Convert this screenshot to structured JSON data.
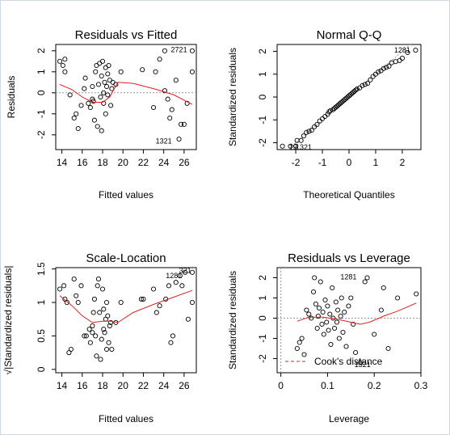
{
  "chart_data": [
    {
      "type": "scatter",
      "title": "Residuals vs Fitted",
      "xlabel": "Fitted values",
      "ylabel": "Residuals",
      "xlim": [
        13.4,
        27.2
      ],
      "ylim": [
        -2.7,
        2.3
      ],
      "xticks": [
        14,
        16,
        18,
        20,
        22,
        24,
        26
      ],
      "yticks": [
        -2,
        -1,
        0,
        1,
        2
      ],
      "reference_line": 0,
      "points": [
        [
          13.8,
          1.5
        ],
        [
          14.1,
          1.3
        ],
        [
          14.3,
          1.6
        ],
        [
          14.3,
          1.0
        ],
        [
          14.8,
          -0.1
        ],
        [
          15.2,
          -1.2
        ],
        [
          15.4,
          -1.0
        ],
        [
          15.6,
          -1.7
        ],
        [
          15.9,
          -0.6
        ],
        [
          16.2,
          0.2
        ],
        [
          16.3,
          0.7
        ],
        [
          16.6,
          -0.5
        ],
        [
          16.8,
          -0.7
        ],
        [
          17.0,
          0.3
        ],
        [
          17.0,
          -0.3
        ],
        [
          17.1,
          -0.4
        ],
        [
          17.2,
          -1.3
        ],
        [
          17.3,
          1.0
        ],
        [
          17.4,
          1.3
        ],
        [
          17.5,
          -1.6
        ],
        [
          17.6,
          0.4
        ],
        [
          17.7,
          1.4
        ],
        [
          17.8,
          -0.2
        ],
        [
          17.9,
          0.8
        ],
        [
          17.9,
          -1.8
        ],
        [
          18.0,
          1.5
        ],
        [
          18.1,
          0.0
        ],
        [
          18.1,
          -0.5
        ],
        [
          18.2,
          0.5
        ],
        [
          18.3,
          1.2
        ],
        [
          18.3,
          -1.0
        ],
        [
          18.4,
          0.3
        ],
        [
          18.5,
          0.9
        ],
        [
          18.5,
          -0.1
        ],
        [
          18.6,
          1.3
        ],
        [
          18.7,
          0.6
        ],
        [
          18.8,
          -0.6
        ],
        [
          18.9,
          0.2
        ],
        [
          19.0,
          0.5
        ],
        [
          19.3,
          0.4
        ],
        [
          19.8,
          1.0
        ],
        [
          21.9,
          1.1
        ],
        [
          23.0,
          -0.7
        ],
        [
          23.2,
          1.0
        ],
        [
          23.6,
          1.6
        ],
        [
          24.1,
          0.1
        ],
        [
          24.4,
          -0.3
        ],
        [
          24.6,
          -1.2
        ],
        [
          24.8,
          -0.8
        ],
        [
          25.2,
          0.6
        ],
        [
          25.5,
          -2.2
        ],
        [
          25.7,
          -1.5
        ],
        [
          26.0,
          -1.5
        ],
        [
          26.3,
          -0.5
        ],
        [
          26.8,
          1.0
        ],
        [
          26.8,
          2.0
        ],
        [
          24.1,
          2.0
        ]
      ],
      "point_labels": [
        {
          "text": "2721",
          "x": 25.5,
          "y": 2.05
        },
        {
          "text": "1321",
          "x": 24.0,
          "y": -2.3
        }
      ],
      "smooth_line": [
        [
          13.8,
          0.4
        ],
        [
          15.0,
          0.15
        ],
        [
          16.0,
          -0.2
        ],
        [
          17.0,
          -0.45
        ],
        [
          18.0,
          -0.45
        ],
        [
          18.7,
          -0.2
        ],
        [
          19.5,
          0.5
        ],
        [
          21.0,
          0.45
        ],
        [
          23.0,
          0.2
        ],
        [
          25.0,
          -0.1
        ],
        [
          26.8,
          -0.55
        ]
      ],
      "smooth_color": "#e02020"
    },
    {
      "type": "scatter",
      "title": "Normal Q-Q",
      "xlabel": "Theoretical Quantiles",
      "ylabel": "Standardized residuals",
      "xlim": [
        -2.7,
        2.7
      ],
      "ylim": [
        -2.3,
        2.3
      ],
      "xticks": [
        -2,
        -1,
        0,
        1,
        2
      ],
      "yticks": [
        -2,
        -1,
        0,
        1,
        2
      ],
      "reference_line": "diagonal",
      "points": [
        [
          -2.5,
          -2.15
        ],
        [
          -2.2,
          -2.15
        ],
        [
          -2.0,
          -2.15
        ],
        [
          -1.95,
          -1.9
        ],
        [
          -1.8,
          -1.9
        ],
        [
          -1.7,
          -1.7
        ],
        [
          -1.6,
          -1.55
        ],
        [
          -1.5,
          -1.5
        ],
        [
          -1.4,
          -1.45
        ],
        [
          -1.3,
          -1.3
        ],
        [
          -1.2,
          -1.2
        ],
        [
          -1.1,
          -1.05
        ],
        [
          -1.0,
          -0.95
        ],
        [
          -0.9,
          -0.85
        ],
        [
          -0.8,
          -0.75
        ],
        [
          -0.75,
          -0.65
        ],
        [
          -0.7,
          -0.6
        ],
        [
          -0.6,
          -0.55
        ],
        [
          -0.55,
          -0.5
        ],
        [
          -0.5,
          -0.45
        ],
        [
          -0.45,
          -0.4
        ],
        [
          -0.4,
          -0.35
        ],
        [
          -0.35,
          -0.3
        ],
        [
          -0.3,
          -0.25
        ],
        [
          -0.25,
          -0.2
        ],
        [
          -0.2,
          -0.15
        ],
        [
          -0.15,
          -0.1
        ],
        [
          -0.1,
          -0.05
        ],
        [
          -0.05,
          0.0
        ],
        [
          0.0,
          0.05
        ],
        [
          0.05,
          0.1
        ],
        [
          0.1,
          0.15
        ],
        [
          0.15,
          0.2
        ],
        [
          0.2,
          0.25
        ],
        [
          0.25,
          0.3
        ],
        [
          0.3,
          0.35
        ],
        [
          0.4,
          0.4
        ],
        [
          0.5,
          0.5
        ],
        [
          0.6,
          0.55
        ],
        [
          0.7,
          0.6
        ],
        [
          0.8,
          0.75
        ],
        [
          0.9,
          0.9
        ],
        [
          1.0,
          1.0
        ],
        [
          1.1,
          1.1
        ],
        [
          1.2,
          1.15
        ],
        [
          1.3,
          1.25
        ],
        [
          1.4,
          1.3
        ],
        [
          1.5,
          1.35
        ],
        [
          1.6,
          1.5
        ],
        [
          1.75,
          1.55
        ],
        [
          1.9,
          1.6
        ],
        [
          2.0,
          1.7
        ],
        [
          2.2,
          1.95
        ],
        [
          2.5,
          2.05
        ]
      ],
      "point_labels": [
        {
          "text": "1281",
          "x": 2.0,
          "y": 2.05
        },
        {
          "text": "19",
          "x": -2.1,
          "y": -2.2
        },
        {
          "text": "1321",
          "x": -1.7,
          "y": -2.2
        }
      ]
    },
    {
      "type": "scatter",
      "title": "Scale-Location",
      "xlabel": "Fitted values",
      "ylabel": "√|Standardized residuals|",
      "xlim": [
        13.4,
        27.2
      ],
      "ylim": [
        -0.05,
        1.52
      ],
      "xticks": [
        14,
        16,
        18,
        20,
        22,
        24,
        26
      ],
      "yticks": [
        0.0,
        0.5,
        1.0,
        1.5
      ],
      "points": [
        [
          13.8,
          1.2
        ],
        [
          14.2,
          1.25
        ],
        [
          14.3,
          1.05
        ],
        [
          14.5,
          1.0
        ],
        [
          14.7,
          0.25
        ],
        [
          14.9,
          0.3
        ],
        [
          15.2,
          1.35
        ],
        [
          15.4,
          1.1
        ],
        [
          15.6,
          1.0
        ],
        [
          15.9,
          1.25
        ],
        [
          16.2,
          0.5
        ],
        [
          16.4,
          0.5
        ],
        [
          16.7,
          0.6
        ],
        [
          16.8,
          0.4
        ],
        [
          17.0,
          0.65
        ],
        [
          17.0,
          0.55
        ],
        [
          17.1,
          0.85
        ],
        [
          17.2,
          1.05
        ],
        [
          17.3,
          0.5
        ],
        [
          17.4,
          0.2
        ],
        [
          17.5,
          1.25
        ],
        [
          17.6,
          1.35
        ],
        [
          17.7,
          0.85
        ],
        [
          17.8,
          0.15
        ],
        [
          17.9,
          0.45
        ],
        [
          18.0,
          1.2
        ],
        [
          18.1,
          0.9
        ],
        [
          18.1,
          0.6
        ],
        [
          18.2,
          0.55
        ],
        [
          18.3,
          0.75
        ],
        [
          18.4,
          0.3
        ],
        [
          18.4,
          1.0
        ],
        [
          18.5,
          0.8
        ],
        [
          18.6,
          0.4
        ],
        [
          18.7,
          0.65
        ],
        [
          18.8,
          0.7
        ],
        [
          18.9,
          0.3
        ],
        [
          19.3,
          0.7
        ],
        [
          19.8,
          1.0
        ],
        [
          21.8,
          1.05
        ],
        [
          22.0,
          1.05
        ],
        [
          23.0,
          1.2
        ],
        [
          23.3,
          0.85
        ],
        [
          23.6,
          0.95
        ],
        [
          24.2,
          1.05
        ],
        [
          24.5,
          1.25
        ],
        [
          24.7,
          0.4
        ],
        [
          24.9,
          0.5
        ],
        [
          25.2,
          1.3
        ],
        [
          25.6,
          1.4
        ],
        [
          25.8,
          1.25
        ],
        [
          26.1,
          1.45
        ],
        [
          26.4,
          0.75
        ],
        [
          26.8,
          1.0
        ],
        [
          26.8,
          1.45
        ]
      ],
      "point_labels": [
        {
          "text": "1281",
          "x": 25.0,
          "y": 1.4
        },
        {
          "text": "321",
          "x": 26.1,
          "y": 1.48
        }
      ],
      "smooth_line": [
        [
          13.8,
          1.1
        ],
        [
          15.0,
          0.95
        ],
        [
          16.0,
          0.8
        ],
        [
          17.0,
          0.7
        ],
        [
          18.0,
          0.72
        ],
        [
          18.8,
          0.72
        ],
        [
          19.5,
          0.7
        ],
        [
          21.0,
          0.85
        ],
        [
          23.0,
          0.97
        ],
        [
          25.0,
          1.08
        ],
        [
          26.8,
          1.18
        ]
      ],
      "smooth_color": "#e02020"
    },
    {
      "type": "scatter",
      "title": "Residuals vs Leverage",
      "xlabel": "Leverage",
      "ylabel": "Standardized residuals",
      "xlim": [
        -0.008,
        0.3
      ],
      "ylim": [
        -2.7,
        2.5
      ],
      "xticks": [
        0.0,
        0.1,
        0.2,
        0.3
      ],
      "yticks": [
        -2,
        -1,
        0,
        1,
        2
      ],
      "reference_line": 0,
      "legend": {
        "text": "Cook's distance",
        "position": "bottom-left"
      },
      "points": [
        [
          0.035,
          -1.5
        ],
        [
          0.04,
          -1.2
        ],
        [
          0.045,
          -1.0
        ],
        [
          0.05,
          -1.8
        ],
        [
          0.055,
          0.4
        ],
        [
          0.06,
          0.2
        ],
        [
          0.065,
          0.0
        ],
        [
          0.07,
          1.3
        ],
        [
          0.072,
          2.0
        ],
        [
          0.075,
          0.7
        ],
        [
          0.078,
          -0.5
        ],
        [
          0.08,
          0.1
        ],
        [
          0.082,
          0.5
        ],
        [
          0.085,
          1.8
        ],
        [
          0.088,
          -0.3
        ],
        [
          0.09,
          0.3
        ],
        [
          0.092,
          -0.8
        ],
        [
          0.095,
          0.9
        ],
        [
          0.098,
          -0.2
        ],
        [
          0.1,
          0.6
        ],
        [
          0.102,
          -0.6
        ],
        [
          0.105,
          0.2
        ],
        [
          0.107,
          -1.3
        ],
        [
          0.11,
          1.5
        ],
        [
          0.112,
          0.0
        ],
        [
          0.115,
          -0.5
        ],
        [
          0.118,
          0.8
        ],
        [
          0.12,
          -0.2
        ],
        [
          0.122,
          0.4
        ],
        [
          0.125,
          -1.0
        ],
        [
          0.128,
          0.1
        ],
        [
          0.13,
          1.0
        ],
        [
          0.133,
          -0.7
        ],
        [
          0.136,
          0.3
        ],
        [
          0.14,
          -1.4
        ],
        [
          0.145,
          0.6
        ],
        [
          0.15,
          1.0
        ],
        [
          0.155,
          -0.3
        ],
        [
          0.16,
          -1.7
        ],
        [
          0.17,
          -2.2
        ],
        [
          0.18,
          1.8
        ],
        [
          0.185,
          2.0
        ],
        [
          0.2,
          -0.8
        ],
        [
          0.215,
          0.4
        ],
        [
          0.22,
          1.5
        ],
        [
          0.23,
          -1.5
        ],
        [
          0.25,
          1.0
        ],
        [
          0.29,
          1.2
        ]
      ],
      "point_labels": [
        {
          "text": "1281",
          "x": 0.145,
          "y": 2.05
        },
        {
          "text": "1321",
          "x": 0.175,
          "y": -2.3
        }
      ],
      "smooth_line": [
        [
          0.035,
          -0.15
        ],
        [
          0.06,
          0.05
        ],
        [
          0.09,
          0.05
        ],
        [
          0.12,
          -0.05
        ],
        [
          0.15,
          -0.2
        ],
        [
          0.17,
          -0.3
        ],
        [
          0.19,
          -0.2
        ],
        [
          0.22,
          0.1
        ],
        [
          0.25,
          0.35
        ],
        [
          0.29,
          0.75
        ]
      ],
      "smooth_color": "#e02020"
    }
  ]
}
